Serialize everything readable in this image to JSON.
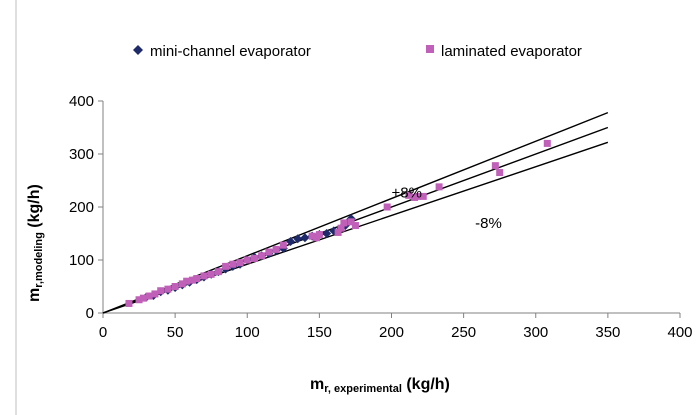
{
  "chart_data": {
    "type": "scatter",
    "xlabel": {
      "main": "m",
      "sub": "r, experimental",
      "unit": " (kg/h)"
    },
    "ylabel": {
      "main": "m",
      "sub": "r,modeling",
      "unit": " (kg/h)"
    },
    "xlim": [
      0,
      400
    ],
    "ylim": [
      0,
      400
    ],
    "x_ticks": [
      0,
      50,
      100,
      150,
      200,
      250,
      300,
      350,
      400
    ],
    "y_ticks": [
      0,
      100,
      200,
      300,
      400
    ],
    "grid": false,
    "legend_position": "top",
    "series": [
      {
        "name": "mini-channel evaporator",
        "marker": "diamond",
        "color": "#1f2a6b",
        "points": [
          [
            30,
            30
          ],
          [
            35,
            33
          ],
          [
            40,
            40
          ],
          [
            45,
            43
          ],
          [
            50,
            48
          ],
          [
            55,
            53
          ],
          [
            60,
            58
          ],
          [
            65,
            63
          ],
          [
            70,
            68
          ],
          [
            75,
            73
          ],
          [
            80,
            78
          ],
          [
            85,
            83
          ],
          [
            90,
            88
          ],
          [
            95,
            92
          ],
          [
            100,
            100
          ],
          [
            105,
            105
          ],
          [
            110,
            108
          ],
          [
            115,
            112
          ],
          [
            120,
            118
          ],
          [
            125,
            122
          ],
          [
            130,
            135
          ],
          [
            135,
            140
          ],
          [
            140,
            142
          ],
          [
            145,
            145
          ],
          [
            150,
            148
          ],
          [
            155,
            150
          ],
          [
            160,
            155
          ],
          [
            165,
            160
          ],
          [
            168,
            165
          ],
          [
            170,
            172
          ],
          [
            172,
            178
          ]
        ]
      },
      {
        "name": "laminated evaporator",
        "marker": "square",
        "color": "#c060b8",
        "points": [
          [
            18,
            18
          ],
          [
            25,
            25
          ],
          [
            28,
            28
          ],
          [
            32,
            32
          ],
          [
            36,
            36
          ],
          [
            40,
            42
          ],
          [
            45,
            45
          ],
          [
            50,
            50
          ],
          [
            55,
            55
          ],
          [
            58,
            60
          ],
          [
            62,
            62
          ],
          [
            65,
            65
          ],
          [
            70,
            70
          ],
          [
            75,
            73
          ],
          [
            80,
            78
          ],
          [
            85,
            88
          ],
          [
            90,
            92
          ],
          [
            95,
            95
          ],
          [
            100,
            100
          ],
          [
            105,
            103
          ],
          [
            110,
            108
          ],
          [
            115,
            115
          ],
          [
            120,
            120
          ],
          [
            125,
            128
          ],
          [
            145,
            145
          ],
          [
            148,
            142
          ],
          [
            150,
            148
          ],
          [
            163,
            152
          ],
          [
            165,
            160
          ],
          [
            167,
            170
          ],
          [
            172,
            172
          ],
          [
            175,
            165
          ],
          [
            197,
            200
          ],
          [
            212,
            222
          ],
          [
            216,
            218
          ],
          [
            218,
            220
          ],
          [
            222,
            220
          ],
          [
            233,
            238
          ],
          [
            272,
            278
          ],
          [
            275,
            265
          ],
          [
            308,
            320
          ]
        ]
      }
    ],
    "lines": [
      {
        "label": "",
        "slope": 1.0,
        "x_range": [
          0,
          350
        ]
      },
      {
        "label": "+8%",
        "slope": 1.08,
        "x_range": [
          0,
          350
        ]
      },
      {
        "label": "-8%",
        "slope": 0.92,
        "x_range": [
          0,
          350
        ]
      }
    ],
    "annotations": [
      {
        "text": "+8%",
        "x": 200,
        "y": 218
      },
      {
        "text": "-8%",
        "x": 258,
        "y": 160
      }
    ]
  }
}
